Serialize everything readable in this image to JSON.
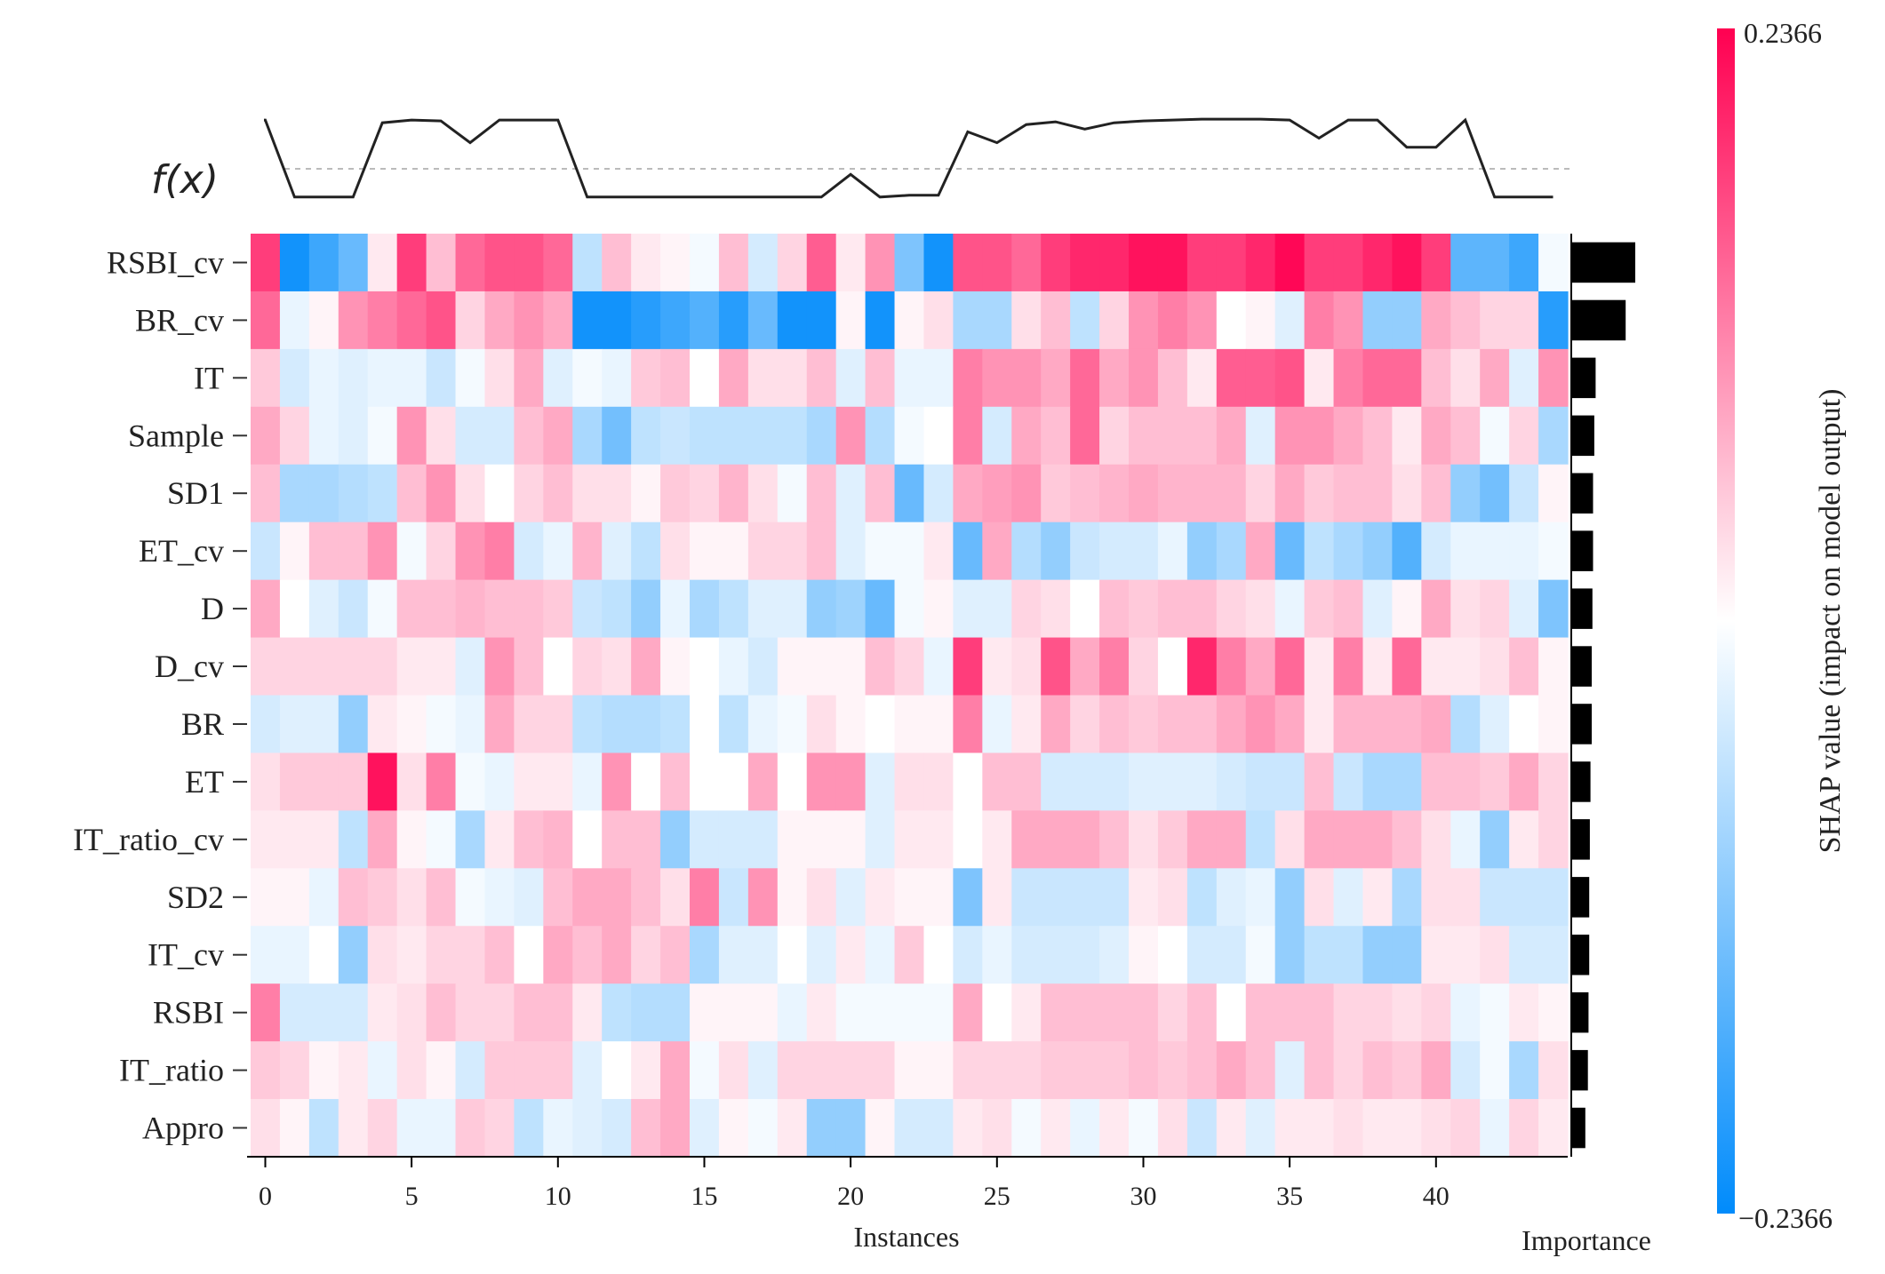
{
  "chart_data": {
    "type": "heatmap",
    "xlabel": "Instances",
    "importance_label": "Importance",
    "fx_label": "f(x)",
    "colorbar": {
      "label": "SHAP value (impact on model output)",
      "vmin": -0.2366,
      "vmax": 0.2366,
      "min_label": "−0.2366",
      "max_label": "0.2366",
      "colors": {
        "low": "#008bfb",
        "mid": "#ffffff",
        "high": "#ff0051"
      }
    },
    "x_ticks": [
      0,
      5,
      10,
      15,
      20,
      25,
      30,
      35,
      40
    ],
    "n_instances": 45,
    "features": [
      "RSBI_cv",
      "BR_cv",
      "IT",
      "Sample",
      "SD1",
      "ET_cv",
      "D",
      "D_cv",
      "BR",
      "ET",
      "IT_ratio_cv",
      "SD2",
      "IT_cv",
      "RSBI",
      "IT_ratio",
      "Appro"
    ],
    "importance": [
      1.0,
      0.85,
      0.38,
      0.36,
      0.34,
      0.34,
      0.33,
      0.32,
      0.32,
      0.3,
      0.29,
      0.28,
      0.28,
      0.27,
      0.26,
      0.22
    ],
    "fx": [
      0.95,
      0.1,
      0.1,
      0.1,
      0.92,
      0.95,
      0.94,
      0.7,
      0.95,
      0.95,
      0.95,
      0.1,
      0.1,
      0.1,
      0.1,
      0.1,
      0.1,
      0.1,
      0.1,
      0.1,
      0.35,
      0.1,
      0.12,
      0.12,
      0.82,
      0.7,
      0.9,
      0.93,
      0.85,
      0.92,
      0.94,
      0.95,
      0.96,
      0.96,
      0.96,
      0.95,
      0.75,
      0.95,
      0.95,
      0.65,
      0.65,
      0.95,
      0.1,
      0.1,
      0.1
    ],
    "shap_values": [
      [
        0.18,
        -0.22,
        -0.18,
        -0.14,
        0.02,
        0.18,
        0.06,
        0.14,
        0.16,
        0.16,
        0.14,
        -0.06,
        0.06,
        0.02,
        0.01,
        -0.01,
        0.06,
        -0.04,
        0.04,
        0.15,
        0.02,
        0.1,
        -0.12,
        -0.22,
        0.16,
        0.16,
        0.14,
        0.18,
        0.2,
        0.2,
        0.22,
        0.22,
        0.18,
        0.18,
        0.2,
        0.23,
        0.18,
        0.18,
        0.2,
        0.22,
        0.18,
        -0.15,
        -0.15,
        -0.18,
        -0.01
      ],
      [
        0.14,
        -0.02,
        0.01,
        0.1,
        0.12,
        0.14,
        0.16,
        0.04,
        0.08,
        0.1,
        0.08,
        -0.22,
        -0.22,
        -0.2,
        -0.18,
        -0.16,
        -0.2,
        -0.14,
        -0.22,
        -0.22,
        0.01,
        -0.22,
        0.01,
        0.03,
        -0.08,
        -0.08,
        0.03,
        0.06,
        -0.06,
        0.04,
        0.1,
        0.12,
        0.1,
        0.0,
        0.01,
        -0.03,
        0.12,
        0.1,
        -0.1,
        -0.1,
        0.08,
        0.06,
        0.04,
        0.04,
        -0.2
      ],
      [
        0.05,
        -0.04,
        -0.02,
        -0.03,
        -0.02,
        -0.02,
        -0.05,
        -0.01,
        0.03,
        0.08,
        -0.03,
        -0.01,
        -0.02,
        0.05,
        0.06,
        0.0,
        0.08,
        0.03,
        0.03,
        0.06,
        -0.03,
        0.06,
        -0.02,
        -0.02,
        0.12,
        0.1,
        0.1,
        0.08,
        0.14,
        0.08,
        0.1,
        0.06,
        0.02,
        0.15,
        0.15,
        0.16,
        0.02,
        0.12,
        0.14,
        0.14,
        0.06,
        0.03,
        0.08,
        -0.03,
        0.1
      ],
      [
        0.08,
        0.04,
        -0.02,
        -0.03,
        -0.01,
        0.1,
        0.03,
        -0.04,
        -0.04,
        0.06,
        0.08,
        -0.08,
        -0.13,
        -0.06,
        -0.05,
        -0.06,
        -0.06,
        -0.06,
        -0.06,
        -0.08,
        0.1,
        -0.07,
        -0.01,
        0.0,
        0.12,
        -0.04,
        0.08,
        0.06,
        0.14,
        0.04,
        0.06,
        0.06,
        0.06,
        0.08,
        -0.03,
        0.1,
        0.1,
        0.08,
        0.06,
        0.02,
        0.08,
        0.06,
        -0.01,
        0.04,
        -0.08
      ],
      [
        0.06,
        -0.08,
        -0.08,
        -0.07,
        -0.06,
        0.06,
        0.1,
        0.03,
        0.0,
        0.04,
        0.06,
        0.03,
        0.03,
        0.01,
        0.05,
        0.04,
        0.07,
        0.03,
        -0.01,
        0.06,
        -0.03,
        0.06,
        -0.14,
        -0.04,
        0.08,
        0.09,
        0.1,
        0.05,
        0.06,
        0.07,
        0.08,
        0.07,
        0.07,
        0.07,
        0.04,
        0.08,
        0.05,
        0.06,
        0.06,
        0.03,
        0.06,
        -0.1,
        -0.13,
        -0.05,
        0.01
      ],
      [
        -0.05,
        0.01,
        0.06,
        0.06,
        0.1,
        -0.01,
        0.04,
        0.1,
        0.12,
        -0.04,
        -0.02,
        0.07,
        -0.03,
        -0.06,
        0.03,
        0.01,
        0.01,
        0.04,
        0.04,
        0.06,
        -0.03,
        -0.01,
        -0.01,
        0.02,
        -0.14,
        0.08,
        -0.07,
        -0.1,
        -0.05,
        -0.04,
        -0.04,
        -0.02,
        -0.1,
        -0.08,
        0.08,
        -0.14,
        -0.06,
        -0.08,
        -0.1,
        -0.16,
        -0.04,
        -0.02,
        -0.02,
        -0.02,
        -0.01
      ],
      [
        0.08,
        0.0,
        -0.03,
        -0.05,
        -0.01,
        0.06,
        0.06,
        0.07,
        0.06,
        0.06,
        0.05,
        -0.05,
        -0.06,
        -0.1,
        -0.02,
        -0.08,
        -0.06,
        -0.03,
        -0.03,
        -0.1,
        -0.09,
        -0.14,
        -0.01,
        0.01,
        -0.03,
        -0.03,
        0.04,
        0.03,
        0.0,
        0.06,
        0.05,
        0.06,
        0.06,
        0.04,
        0.03,
        -0.02,
        0.05,
        0.06,
        -0.03,
        0.01,
        0.08,
        0.03,
        0.04,
        -0.03,
        -0.12
      ],
      [
        0.04,
        0.04,
        0.04,
        0.04,
        0.04,
        0.02,
        0.02,
        -0.03,
        0.1,
        0.06,
        0.0,
        0.04,
        0.03,
        0.08,
        0.01,
        0.0,
        -0.02,
        -0.04,
        0.01,
        0.01,
        0.01,
        0.06,
        0.04,
        -0.02,
        0.18,
        0.02,
        0.03,
        0.16,
        0.08,
        0.12,
        0.04,
        0.0,
        0.2,
        0.12,
        0.08,
        0.14,
        0.02,
        0.12,
        0.02,
        0.14,
        0.02,
        0.02,
        0.03,
        0.06,
        0.01
      ],
      [
        -0.04,
        -0.03,
        -0.03,
        -0.1,
        0.02,
        0.01,
        -0.01,
        -0.02,
        0.08,
        0.04,
        0.04,
        -0.06,
        -0.07,
        -0.07,
        -0.06,
        0.0,
        -0.06,
        -0.02,
        -0.01,
        0.03,
        0.01,
        0.0,
        0.01,
        0.01,
        0.12,
        -0.02,
        0.02,
        0.08,
        0.04,
        0.06,
        0.05,
        0.06,
        0.06,
        0.08,
        0.1,
        0.08,
        0.02,
        0.07,
        0.07,
        0.07,
        0.08,
        -0.07,
        -0.03,
        0.0,
        0.01
      ],
      [
        0.03,
        0.05,
        0.05,
        0.05,
        0.22,
        0.03,
        0.12,
        -0.01,
        -0.02,
        0.02,
        0.02,
        -0.02,
        0.1,
        0.0,
        0.06,
        0.0,
        0.0,
        0.08,
        0.0,
        0.1,
        0.1,
        -0.03,
        0.03,
        0.03,
        0.0,
        0.06,
        0.06,
        -0.04,
        -0.04,
        -0.04,
        -0.03,
        -0.03,
        -0.03,
        -0.04,
        -0.05,
        -0.05,
        0.06,
        -0.05,
        -0.08,
        -0.08,
        0.06,
        0.06,
        0.05,
        0.08,
        0.04
      ],
      [
        0.02,
        0.02,
        0.02,
        -0.06,
        0.08,
        0.01,
        -0.01,
        -0.08,
        0.02,
        0.06,
        0.07,
        0.0,
        0.06,
        0.06,
        -0.1,
        -0.04,
        -0.04,
        -0.04,
        0.01,
        0.01,
        0.01,
        -0.03,
        0.02,
        0.02,
        0.0,
        0.02,
        0.08,
        0.08,
        0.08,
        0.06,
        0.03,
        0.05,
        0.08,
        0.08,
        -0.06,
        0.03,
        0.08,
        0.08,
        0.08,
        0.06,
        0.03,
        -0.02,
        -0.1,
        0.02,
        0.04
      ],
      [
        0.01,
        0.01,
        -0.02,
        0.06,
        0.05,
        0.03,
        0.06,
        -0.01,
        -0.02,
        -0.03,
        0.06,
        0.08,
        0.08,
        0.06,
        0.03,
        0.12,
        -0.05,
        0.1,
        0.01,
        0.03,
        -0.03,
        0.02,
        0.01,
        0.01,
        -0.12,
        0.02,
        -0.05,
        -0.05,
        -0.05,
        -0.05,
        0.02,
        0.03,
        -0.06,
        -0.03,
        -0.02,
        -0.1,
        0.03,
        -0.03,
        0.02,
        -0.08,
        0.03,
        0.03,
        -0.05,
        -0.05,
        -0.05
      ],
      [
        -0.02,
        -0.02,
        0.0,
        -0.1,
        0.03,
        0.02,
        0.04,
        0.04,
        0.06,
        0.0,
        0.08,
        0.06,
        0.08,
        0.04,
        0.06,
        -0.08,
        -0.03,
        -0.03,
        0.0,
        -0.03,
        0.02,
        -0.02,
        0.05,
        0.0,
        -0.04,
        -0.02,
        -0.04,
        -0.04,
        -0.04,
        -0.03,
        0.01,
        0.0,
        -0.04,
        -0.04,
        -0.01,
        -0.1,
        -0.06,
        -0.06,
        -0.1,
        -0.1,
        0.02,
        0.02,
        0.03,
        -0.04,
        -0.04
      ],
      [
        0.12,
        -0.04,
        -0.04,
        -0.04,
        0.02,
        0.03,
        0.06,
        0.04,
        0.04,
        0.06,
        0.06,
        0.02,
        -0.06,
        -0.07,
        -0.07,
        0.01,
        0.01,
        0.01,
        -0.02,
        0.02,
        -0.01,
        -0.01,
        -0.01,
        -0.01,
        0.08,
        0.0,
        0.02,
        0.06,
        0.06,
        0.06,
        0.06,
        0.04,
        0.06,
        0.0,
        0.06,
        0.06,
        0.06,
        0.04,
        0.04,
        0.03,
        0.04,
        -0.02,
        -0.01,
        0.02,
        0.01
      ],
      [
        0.05,
        0.04,
        0.01,
        0.02,
        -0.02,
        0.03,
        0.01,
        -0.04,
        0.05,
        0.05,
        0.05,
        -0.03,
        0.0,
        0.02,
        0.08,
        -0.01,
        0.03,
        -0.03,
        0.04,
        0.04,
        0.04,
        0.04,
        0.01,
        0.01,
        0.04,
        0.04,
        0.04,
        0.05,
        0.05,
        0.05,
        0.06,
        0.05,
        0.06,
        0.08,
        0.06,
        -0.03,
        0.06,
        0.04,
        0.06,
        0.05,
        0.08,
        -0.04,
        -0.01,
        -0.08,
        0.03
      ],
      [
        0.03,
        0.01,
        -0.06,
        0.02,
        0.04,
        -0.02,
        -0.02,
        0.05,
        0.04,
        -0.06,
        -0.02,
        -0.03,
        -0.04,
        0.06,
        0.08,
        -0.03,
        0.01,
        -0.01,
        0.02,
        -0.1,
        -0.1,
        0.01,
        -0.04,
        -0.04,
        0.02,
        0.03,
        -0.01,
        0.02,
        -0.02,
        0.02,
        -0.01,
        0.03,
        -0.05,
        0.02,
        -0.03,
        0.02,
        0.02,
        0.03,
        0.02,
        0.02,
        0.03,
        0.04,
        -0.02,
        0.04,
        0.02
      ]
    ]
  }
}
